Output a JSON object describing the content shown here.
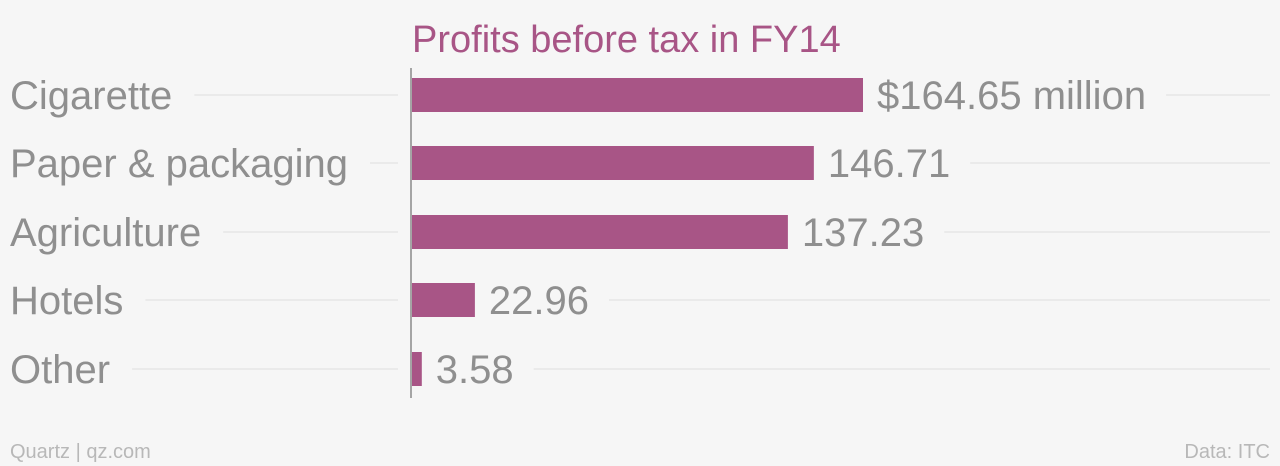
{
  "chart_data": {
    "type": "bar",
    "orientation": "horizontal",
    "title": "Profits before tax in FY14",
    "categories": [
      "Cigarette",
      "Paper & packaging",
      "Agriculture",
      "Hotels",
      "Other"
    ],
    "values": [
      164.65,
      146.71,
      137.23,
      22.96,
      3.58
    ],
    "value_labels": [
      "$164.65 million",
      "146.71",
      "137.23",
      "22.96",
      "3.58"
    ],
    "xlim": [
      0,
      164.65
    ],
    "grid": true,
    "xlabel": "",
    "ylabel": ""
  },
  "footer": {
    "credit": "Quartz | qz.com",
    "source": "Data: ITC"
  },
  "colors": {
    "bar": "#a85586",
    "title": "#a85586",
    "category_text": "#8f8f8f",
    "value_text": "#8f8f8f",
    "footer_text": "#b8b8b8",
    "grid": "#e6e6e6",
    "axis": "#8a8a8a",
    "background": "#f6f6f6"
  }
}
